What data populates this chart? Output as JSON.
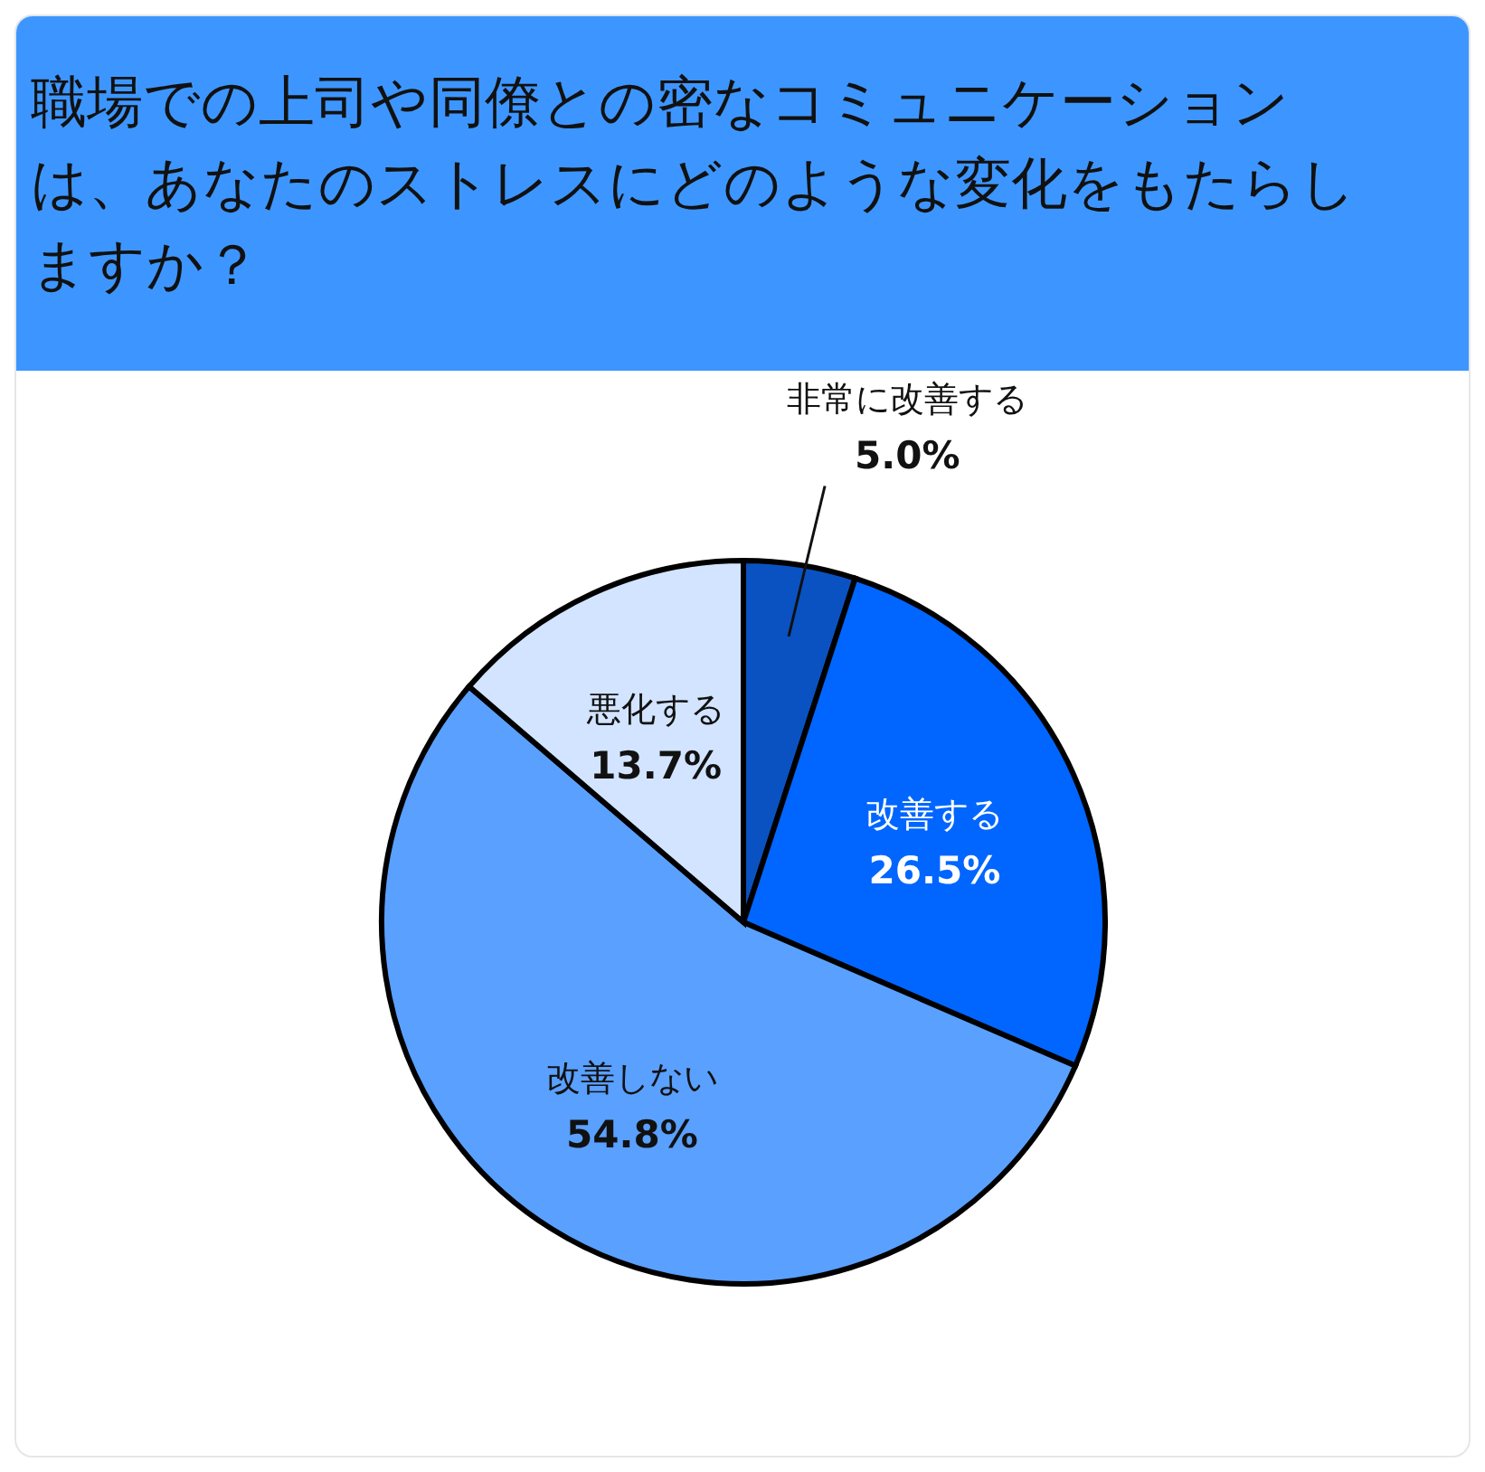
{
  "chart_data": {
    "type": "pie",
    "title": "職場での上司や同僚との密なコミュニケーションは、あなたのストレスにどのような変化をもたらしますか？",
    "categories": [
      "非常に改善する",
      "改善する",
      "改善しない",
      "悪化する"
    ],
    "values": [
      5.0,
      26.5,
      54.8,
      13.7
    ],
    "value_labels": [
      "5.0%",
      "26.5%",
      "54.8%",
      "13.7%"
    ],
    "colors": [
      "#0a52c2",
      "#0066ff",
      "#5aa0ff",
      "#d2e4ff"
    ]
  }
}
